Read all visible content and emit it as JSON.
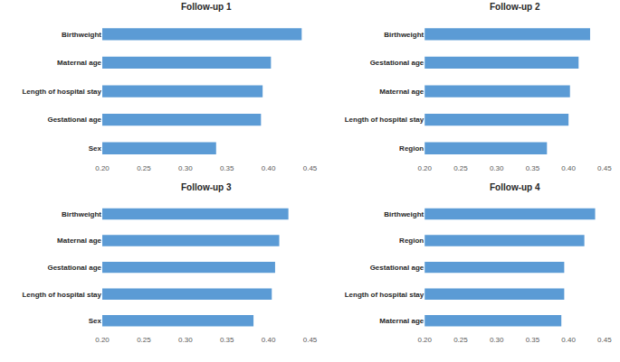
{
  "chart_data": [
    {
      "type": "bar",
      "title": "Follow-up 1",
      "orientation": "horizontal",
      "color": "#5b9bd5",
      "grid": false,
      "categories": [
        "Birthweight",
        "Maternal age",
        "Length of hospital stay",
        "Gestational age",
        "Sex"
      ],
      "values": [
        0.44,
        0.403,
        0.393,
        0.391,
        0.337
      ],
      "xlim": [
        0.2,
        0.45
      ],
      "xticks": [
        {
          "value": 0.2,
          "label": "0.20"
        },
        0.25,
        {
          "value": 0.3,
          "label": "0.30"
        },
        0.35,
        {
          "value": 0.4,
          "label": "0.40"
        },
        0.45
      ]
    },
    {
      "type": "bar",
      "title": "Follow-up 2",
      "orientation": "horizontal",
      "color": "#5b9bd5",
      "grid": false,
      "categories": [
        "Birthweight",
        "Gestational age",
        "Maternal age",
        "Length of hospital stay",
        "Region"
      ],
      "values": [
        0.43,
        0.414,
        0.402,
        0.4,
        0.37
      ],
      "xlim": [
        0.2,
        0.45
      ],
      "xticks": [
        {
          "value": 0.2,
          "label": "0.20"
        },
        0.25,
        {
          "value": 0.3,
          "label": "0.30"
        },
        0.35,
        {
          "value": 0.4,
          "label": "0.40"
        },
        0.45
      ]
    },
    {
      "type": "bar",
      "title": "Follow-up 3",
      "orientation": "horizontal",
      "color": "#5b9bd5",
      "grid": false,
      "categories": [
        "Birthweight",
        "Maternal age",
        "Gestational age",
        "Length of hospital stay",
        "Sex"
      ],
      "values": [
        0.424,
        0.413,
        0.408,
        0.404,
        0.382
      ],
      "xlim": [
        0.2,
        0.45
      ],
      "xticks": [
        {
          "value": 0.2,
          "label": "0.20"
        },
        0.25,
        {
          "value": 0.3,
          "label": "0.30"
        },
        0.35,
        {
          "value": 0.4,
          "label": "0.40"
        },
        0.45
      ]
    },
    {
      "type": "bar",
      "title": "Follow-up 4",
      "orientation": "horizontal",
      "color": "#5b9bd5",
      "grid": false,
      "categories": [
        "Birthweight",
        "Region",
        "Gestational age",
        "Length of hospital stay",
        "Maternal age"
      ],
      "values": [
        0.437,
        0.422,
        0.394,
        0.394,
        0.39
      ],
      "xlim": [
        0.2,
        0.45
      ],
      "xticks": [
        {
          "value": 0.2,
          "label": "0.20"
        },
        0.25,
        {
          "value": 0.3,
          "label": "0.30"
        },
        0.35,
        {
          "value": 0.4,
          "label": "0.40"
        },
        0.45
      ]
    }
  ]
}
